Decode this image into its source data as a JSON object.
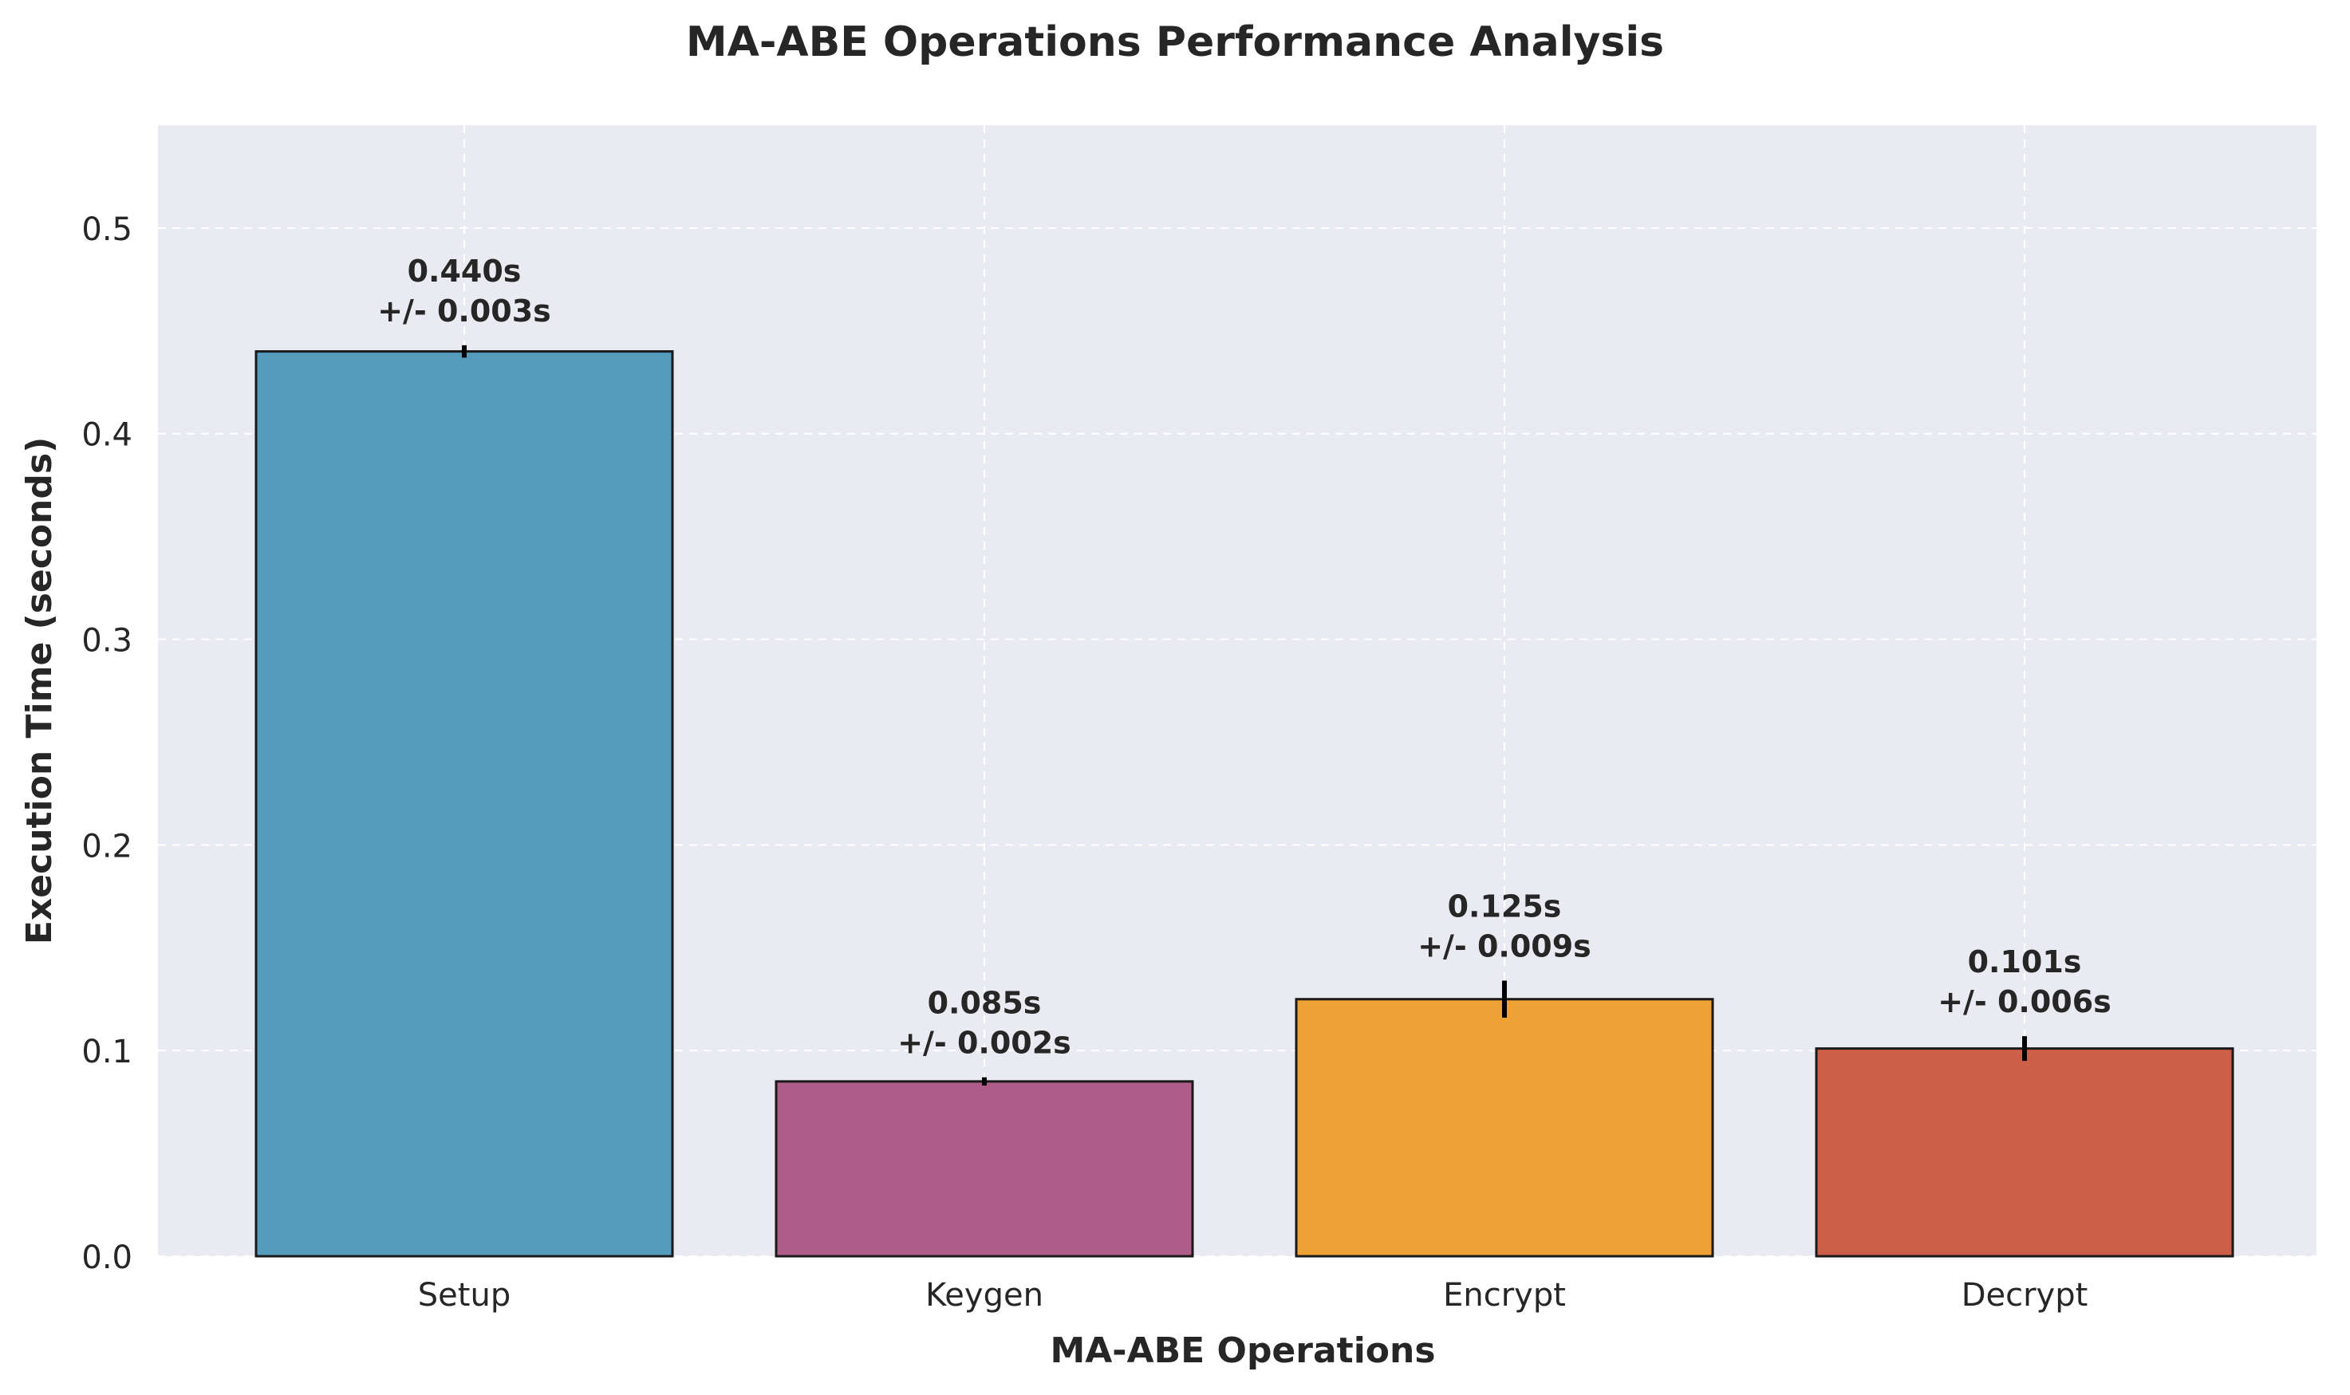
{
  "chart_data": {
    "type": "bar",
    "title": "MA-ABE Operations Performance Analysis",
    "xlabel": "MA-ABE Operations",
    "ylabel": "Execution Time (seconds)",
    "categories": [
      "Setup",
      "Keygen",
      "Encrypt",
      "Decrypt"
    ],
    "values": [
      0.44,
      0.085,
      0.125,
      0.101
    ],
    "errors": [
      0.003,
      0.002,
      0.009,
      0.006
    ],
    "value_labels": [
      "0.440s",
      "0.085s",
      "0.125s",
      "0.101s"
    ],
    "error_labels": [
      "+/- 0.003s",
      "+/- 0.002s",
      "+/- 0.009s",
      "+/- 0.006s"
    ],
    "colors": [
      "#559bbb",
      "#ad5d88",
      "#eea134",
      "#cc5f47"
    ],
    "ylim": [
      0,
      0.55
    ],
    "yticks": [
      0.0,
      0.1,
      0.2,
      0.3,
      0.4,
      0.5
    ],
    "ytick_labels": [
      "0.0",
      "0.1",
      "0.2",
      "0.3",
      "0.4",
      "0.5"
    ],
    "grid": true,
    "plot_background": "#eaeaf2"
  }
}
